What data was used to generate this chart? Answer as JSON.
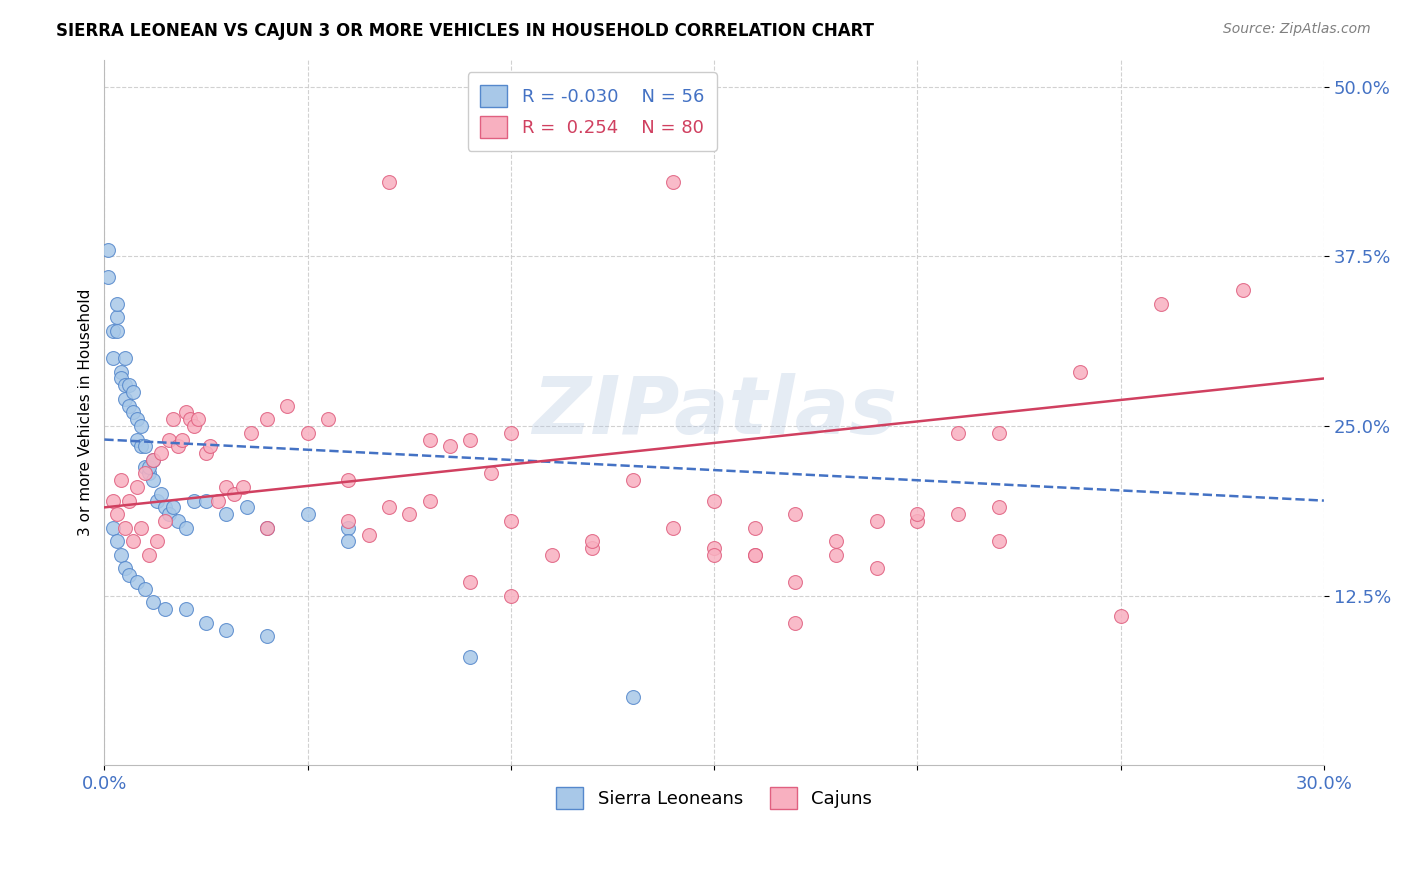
{
  "title": "SIERRA LEONEAN VS CAJUN 3 OR MORE VEHICLES IN HOUSEHOLD CORRELATION CHART",
  "source": "Source: ZipAtlas.com",
  "ylabel": "3 or more Vehicles in Household",
  "xmin": 0.0,
  "xmax": 0.3,
  "ymin": 0.0,
  "ymax": 0.52,
  "ytick_vals": [
    0.125,
    0.25,
    0.375,
    0.5
  ],
  "ytick_labels": [
    "12.5%",
    "25.0%",
    "37.5%",
    "50.0%"
  ],
  "xtick_vals": [
    0.0,
    0.05,
    0.1,
    0.15,
    0.2,
    0.25,
    0.3
  ],
  "xtick_labels": [
    "0.0%",
    "",
    "",
    "",
    "",
    "",
    "30.0%"
  ],
  "legend_r_blue": "-0.030",
  "legend_n_blue": "56",
  "legend_r_pink": "0.254",
  "legend_n_pink": "80",
  "blue_scatter_color": "#a8c8e8",
  "blue_scatter_edge": "#5588cc",
  "pink_scatter_color": "#f8b0c0",
  "pink_scatter_edge": "#e06080",
  "blue_line_color": "#4472c4",
  "pink_line_color": "#d04060",
  "watermark": "ZIPatlas",
  "blue_line_x0": 0.0,
  "blue_line_x1": 0.3,
  "blue_line_y0": 0.24,
  "blue_line_y1": 0.195,
  "pink_line_x0": 0.0,
  "pink_line_x1": 0.3,
  "pink_line_y0": 0.19,
  "pink_line_y1": 0.285,
  "blue_x": [
    0.001,
    0.001,
    0.002,
    0.002,
    0.003,
    0.003,
    0.003,
    0.004,
    0.004,
    0.005,
    0.005,
    0.005,
    0.006,
    0.006,
    0.007,
    0.007,
    0.008,
    0.008,
    0.009,
    0.009,
    0.01,
    0.01,
    0.011,
    0.011,
    0.012,
    0.012,
    0.013,
    0.014,
    0.015,
    0.016,
    0.017,
    0.018,
    0.02,
    0.022,
    0.025,
    0.03,
    0.035,
    0.04,
    0.05,
    0.06,
    0.002,
    0.003,
    0.004,
    0.005,
    0.006,
    0.008,
    0.01,
    0.012,
    0.015,
    0.02,
    0.025,
    0.03,
    0.04,
    0.06,
    0.09,
    0.13
  ],
  "blue_y": [
    0.38,
    0.36,
    0.3,
    0.32,
    0.33,
    0.34,
    0.32,
    0.29,
    0.285,
    0.3,
    0.28,
    0.27,
    0.265,
    0.28,
    0.26,
    0.275,
    0.255,
    0.24,
    0.235,
    0.25,
    0.22,
    0.235,
    0.215,
    0.22,
    0.21,
    0.225,
    0.195,
    0.2,
    0.19,
    0.185,
    0.19,
    0.18,
    0.175,
    0.195,
    0.195,
    0.185,
    0.19,
    0.175,
    0.185,
    0.175,
    0.175,
    0.165,
    0.155,
    0.145,
    0.14,
    0.135,
    0.13,
    0.12,
    0.115,
    0.115,
    0.105,
    0.1,
    0.095,
    0.165,
    0.08,
    0.05
  ],
  "pink_x": [
    0.002,
    0.003,
    0.004,
    0.005,
    0.006,
    0.007,
    0.008,
    0.009,
    0.01,
    0.011,
    0.012,
    0.013,
    0.014,
    0.015,
    0.016,
    0.017,
    0.018,
    0.019,
    0.02,
    0.021,
    0.022,
    0.023,
    0.025,
    0.026,
    0.028,
    0.03,
    0.032,
    0.034,
    0.036,
    0.04,
    0.045,
    0.05,
    0.055,
    0.06,
    0.065,
    0.07,
    0.075,
    0.08,
    0.085,
    0.09,
    0.095,
    0.1,
    0.11,
    0.12,
    0.13,
    0.14,
    0.15,
    0.16,
    0.17,
    0.18,
    0.19,
    0.2,
    0.21,
    0.22,
    0.15,
    0.16,
    0.17,
    0.18,
    0.2,
    0.21,
    0.22,
    0.24,
    0.26,
    0.28,
    0.09,
    0.1,
    0.12,
    0.14,
    0.16,
    0.07,
    0.08,
    0.1,
    0.12,
    0.15,
    0.17,
    0.19,
    0.22,
    0.25,
    0.04,
    0.06
  ],
  "pink_y": [
    0.195,
    0.185,
    0.21,
    0.175,
    0.195,
    0.165,
    0.205,
    0.175,
    0.215,
    0.155,
    0.225,
    0.165,
    0.23,
    0.18,
    0.24,
    0.255,
    0.235,
    0.24,
    0.26,
    0.255,
    0.25,
    0.255,
    0.23,
    0.235,
    0.195,
    0.205,
    0.2,
    0.205,
    0.245,
    0.255,
    0.265,
    0.245,
    0.255,
    0.21,
    0.17,
    0.19,
    0.185,
    0.195,
    0.235,
    0.24,
    0.215,
    0.245,
    0.155,
    0.16,
    0.21,
    0.175,
    0.16,
    0.155,
    0.135,
    0.165,
    0.18,
    0.18,
    0.185,
    0.245,
    0.195,
    0.155,
    0.105,
    0.155,
    0.185,
    0.245,
    0.19,
    0.29,
    0.34,
    0.35,
    0.135,
    0.125,
    0.46,
    0.43,
    0.175,
    0.43,
    0.24,
    0.18,
    0.165,
    0.155,
    0.185,
    0.145,
    0.165,
    0.11,
    0.175,
    0.18
  ]
}
